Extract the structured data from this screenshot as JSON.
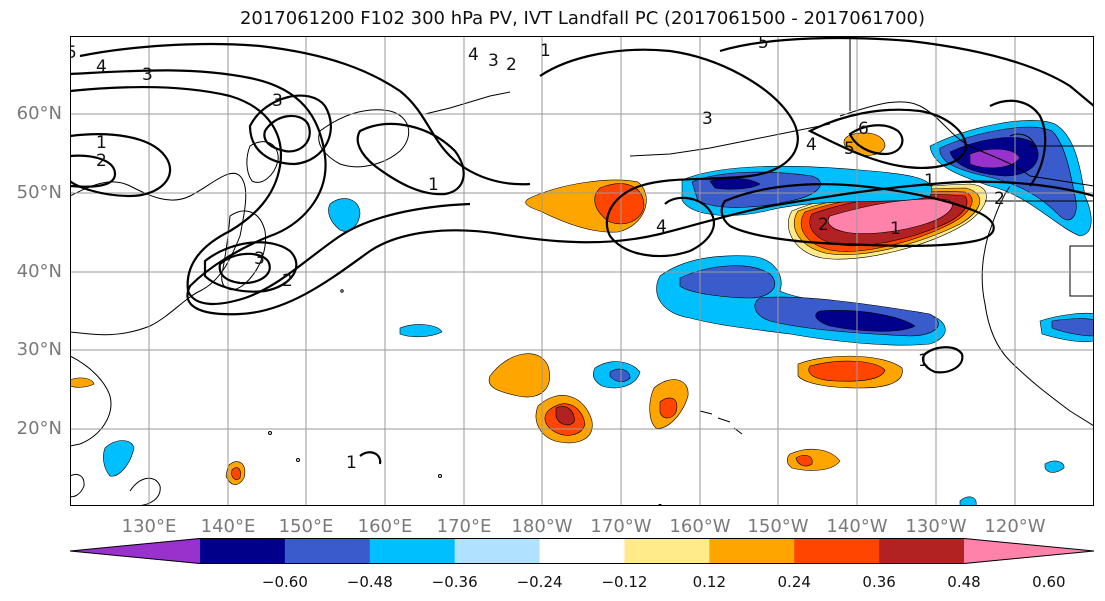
{
  "title": "2017061200 F102 300 hPa PV, IVT Landfall PC (2017061500 - 2017061700)",
  "lat_labels": [
    "60°N",
    "50°N",
    "40°N",
    "30°N",
    "20°N"
  ],
  "lon_labels": [
    "130°E",
    "140°E",
    "150°E",
    "160°E",
    "170°E",
    "180°W",
    "170°W",
    "160°W",
    "150°W",
    "140°W",
    "130°W",
    "120°W"
  ],
  "contour_labels": [
    "5",
    "4",
    "3",
    "3",
    "1",
    "2",
    "1",
    "3",
    "2",
    "4",
    "3",
    "2",
    "1",
    "3",
    "4",
    "5",
    "4",
    "6",
    "5",
    "1",
    "2",
    "1",
    "1",
    "1",
    "2"
  ],
  "colorbar": {
    "ticks": [
      "−0.60",
      "−0.48",
      "−0.36",
      "−0.24",
      "−0.12",
      "0.12",
      "0.24",
      "0.36",
      "0.48",
      "0.60"
    ],
    "colors": [
      "#9932CC",
      "#00008B",
      "#3A5BCB",
      "#00BFFF",
      "#B0E2FF",
      "#FFFFFF",
      "#FFEB8A",
      "#FFA500",
      "#FF4500",
      "#B22222",
      "#FF82AB"
    ]
  }
}
